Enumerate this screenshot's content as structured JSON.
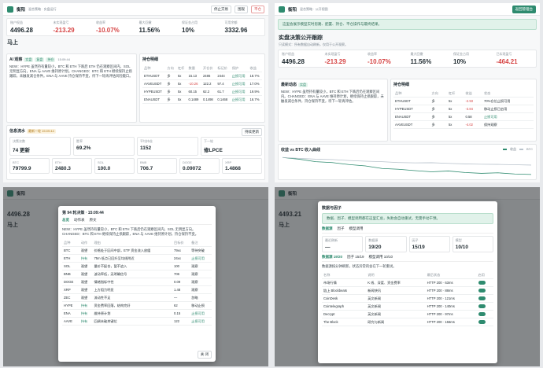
{
  "panels": [
    {
      "brand": "衡阳",
      "subtitle": "混合策略 · 实盘运行",
      "buttons": [
        "停止交易",
        "围观",
        "平仓"
      ],
      "stats": [
        [
          "账户权益",
          "4496.28"
        ],
        [
          "未实现盈亏",
          "-213.29"
        ],
        [
          "收益率",
          "-10.07%"
        ],
        [
          "最大回撤",
          "11.56%"
        ],
        [
          "保证金占用",
          "10%"
        ],
        [
          "可用余额",
          "3332.96"
        ]
      ],
      "heading": "马上",
      "ai": {
        "title": "AI 观察",
        "tags": [
          "实盘",
          "复盘",
          "持仓"
        ],
        "time": "15:09:44",
        "text": "NEW：HYPE 虽然持有量较小，BTC 和 ETH 下跌后 ETH 仍在观察区间内，SOL 无明显方向，ENA 与 AAVE 维持原计划。CHANGED：BTC 和 ETH 继续保持止损跟踪，未触发减仓条件。ENA 与 AAVE 持仓保持不变，待下一轮再评估风险敞口。"
      },
      "positions": {
        "title": "持仓明细",
        "columns": [
          "品种",
          "方向",
          "杠杆",
          "数量",
          "开仓价",
          "标记价",
          "保护",
          "收益"
        ],
        "rows": [
          [
            "ETHUSDT",
            "多",
            "5x",
            "15.13",
            "2486",
            "2444",
            "止损可用",
            "18.7%"
          ],
          [
            "AAVEUSDT",
            "多",
            "5x",
            "-10.26",
            "122.2",
            "97.4",
            "止损可用",
            "17.0%"
          ],
          [
            "HYPEUSDT",
            "多",
            "5x",
            "60.15",
            "62.2",
            "61.7",
            "止损可用",
            "19.9%"
          ],
          [
            "ENAUSDT",
            "多",
            "5x",
            "0.1489",
            "0.1498",
            "0.1468",
            "止损可用",
            "16.7%"
          ]
        ]
      },
      "flow": {
        "title": "信息流水",
        "note": "最新一轮 15:09:44",
        "button": "持续更新",
        "stats": [
          [
            "决策次数",
            "74 更新"
          ],
          [
            "胜率",
            "69.2%"
          ],
          [
            "平均持仓",
            "1152"
          ],
          [
            "下一轮",
            "修LPCE"
          ]
        ],
        "prices": [
          [
            "BTC",
            "79799.9"
          ],
          [
            "ETH",
            "2480.3"
          ],
          [
            "SOL",
            "100.0"
          ],
          [
            "BNB",
            "706.7"
          ],
          [
            "DOGE",
            "0.09072"
          ],
          [
            "XRP",
            "1.4868"
          ]
        ]
      }
    },
    {
      "brand": "衡阳",
      "subtitle": "混合策略 · 公开视图",
      "button": "返回管理台",
      "banner": "这里会展示模型实时思路、配置、持仓、平仓操作与最终结果。",
      "title": "实盘决策公开跟踪",
      "intro": "只读模式：所有数据自动刷新，仅用于公开观察。",
      "stats": [
        [
          "账户权益",
          "4496.28"
        ],
        [
          "未实现盈亏",
          "-213.29"
        ],
        [
          "收益率",
          "-10.07%"
        ],
        [
          "最大回撤",
          "11.56%"
        ],
        [
          "保证金占用",
          "10%"
        ],
        [
          "已实现盈亏",
          "-464.21"
        ]
      ],
      "latest": {
        "title": "最新动态",
        "tag": "实盘",
        "text": "NEW：HYPE 虽然持有量较小，BTC 和 ETH 下跌后仍在观察区间内。CHANGED：ENA 与 AAVE 维持原计划，继续保持止损跟踪，未触发减仓条件，持仓保持不变，待下一轮再评估。"
      },
      "positions": {
        "title": "持仓明细",
        "columns": [
          "品种",
          "方向",
          "杠杆",
          "收益",
          "状态"
        ],
        "rows": [
          [
            "ETHUSDT",
            "多",
            "5x",
            "-2.93",
            "70%仓位止损可用"
          ],
          [
            "HYPEUSDT",
            "多",
            "5x",
            "-3.84",
            "移动止损已启用"
          ],
          [
            "ENAUSDT",
            "多",
            "5x",
            "0.58",
            "止损可用"
          ],
          [
            "AAVEUSDT",
            "多",
            "5x",
            "-4.02",
            "保持观察"
          ]
        ]
      },
      "chart": {
        "title": "收益 vs BTC 收入曲线",
        "ylim": [
          -12,
          2
        ],
        "series": [
          {
            "name": "收益",
            "color": "#2e8b6f",
            "values": [
              0,
              -1,
              -2.5,
              -3,
              -4.2,
              -5,
              -6.5,
              -7,
              -7.8,
              -8.5,
              -8,
              -8.9,
              -9.4,
              -9.1,
              -9.8,
              -10.07
            ]
          },
          {
            "name": "BTC",
            "color": "#b9c3cc",
            "values": [
              0,
              -0.5,
              -1,
              -1.2,
              -1.8,
              -2.2,
              -2.5,
              -3,
              -3.2,
              -3.1,
              -3.5,
              -3.8,
              -4,
              -4.1,
              -4.3,
              -4.5
            ]
          }
        ]
      }
    },
    {
      "bg": {
        "brand": "衡阳",
        "value": "4496.28",
        "heading": "马上"
      },
      "modal": {
        "title": "第 94 轮决策 · 15:09:44",
        "tabs": [
          "总览",
          "动作表",
          "原文"
        ],
        "text": "NEW：HYPE 虽然持有量较小，BTC 和 ETH 下跌后仍在观察区间内，SOL 无明显方向。CHANGED：BTC 和 ETH 继续保持止损跟踪，ENA 与 AAVE 维持原计划，持仓保持不变。",
        "columns": [
          "品种",
          "动作",
          "理由",
          "目标价",
          "备注"
        ],
        "rows": [
          [
            "BTC",
            "观望",
            "价格处于区间中部，ETF 资金流入放缓",
            "79xx",
            "等待突破"
          ],
          [
            "ETH",
            "持有",
            "75m 低点已回升至均线附近",
            "24xx",
            "止损可用"
          ],
          [
            "SOL",
            "观望",
            "量价不配合，暂不追入",
            "100",
            "观察"
          ],
          [
            "BNB",
            "观望",
            "波动率低，无明确信号",
            "706",
            "观察"
          ],
          [
            "DOGE",
            "观望",
            "情绪指标中性",
            "0.09",
            "观察"
          ],
          [
            "XRP",
            "观望",
            "上方阻力明显",
            "1.48",
            "观察"
          ],
          [
            "ZEC",
            "观望",
            "流动性不足",
            "—",
            "忽略"
          ],
          [
            "HYPE",
            "持有",
            "资金费率回落，结构完好",
            "62",
            "移动止损"
          ],
          [
            "ENA",
            "持有",
            "维持原计划",
            "0.15",
            "止损可用"
          ],
          [
            "AAVE",
            "持有",
            "回调未破关键位",
            "122",
            "止损可用"
          ]
        ],
        "close": "关 闭"
      }
    },
    {
      "bg": {
        "brand": "衡阳",
        "value": "4493.21",
        "heading": "马上"
      },
      "modal": {
        "title": "数据与因子",
        "banner": "数据、因子、模型调用都在这里汇总，失败会自动重试，无需手动干预。",
        "tabs": [
          "数据源",
          "因子",
          "模型调用"
        ],
        "stats": [
          [
            "最近刷新",
            "—"
          ],
          [
            "数据源",
            "19/20"
          ],
          [
            "因子",
            "15/19"
          ],
          [
            "模型",
            "10/10"
          ]
        ],
        "subtabs": [
          "数据源 19/20",
          "因子 15/19",
          "模型调用 10/10"
        ],
        "note": "数据源按分钟刷新，状态异常的会在下一轮重试。",
        "columns": [
          "名称",
          "说明",
          "最后状态",
          "启用"
        ],
        "rows": [
          [
            "市场行情",
            "K 线、深度、资金费率",
            "HTTP 200 · 63ms"
          ],
          [
            "链上 Blockbeats",
            "新闻快讯",
            "HTTP 200 · 88ms"
          ],
          [
            "CoinDesk",
            "英文新闻",
            "HTTP 200 · 121ms"
          ],
          [
            "Cointelegraph",
            "英文新闻",
            "HTTP 200 · 140ms"
          ],
          [
            "Decrypt",
            "英文新闻",
            "HTTP 200 · 97ms"
          ],
          [
            "The Block",
            "研究与新闻",
            "HTTP 200 · 156ms"
          ]
        ]
      }
    }
  ]
}
